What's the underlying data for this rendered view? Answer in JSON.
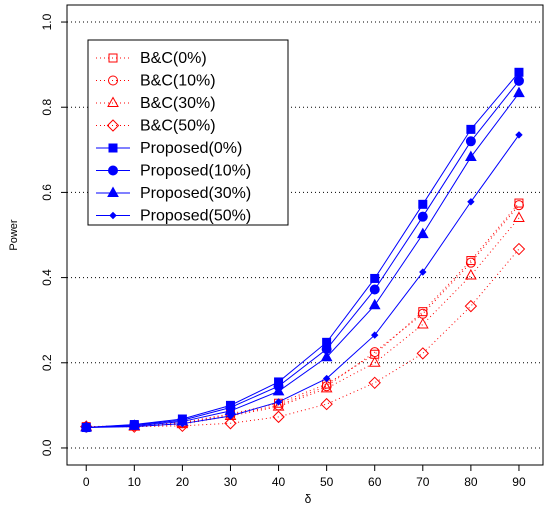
{
  "chart_data": {
    "type": "line",
    "x_label": "δ",
    "y_label": "Power",
    "x": [
      0,
      10,
      20,
      30,
      40,
      50,
      60,
      70,
      80,
      90
    ],
    "xlim": [
      -4,
      95
    ],
    "ylim": [
      -0.04,
      1.04
    ],
    "xticks": [
      0,
      10,
      20,
      30,
      40,
      50,
      60,
      70,
      80,
      90
    ],
    "yticks": [
      {
        "value": 0,
        "label": "0.0"
      },
      0.2,
      0.4,
      0.6,
      0.8,
      {
        "value": 1,
        "label": "1.0"
      }
    ],
    "grid": true,
    "legend": "upper left",
    "series": [
      {
        "name": "B&C(0%)",
        "color": "#ff0000",
        "marker": "square",
        "filled": false,
        "dash": true,
        "values": [
          0.05,
          0.052,
          0.06,
          0.08,
          0.105,
          0.15,
          0.22,
          0.32,
          0.44,
          0.575
        ]
      },
      {
        "name": "B&C(10%)",
        "color": "#ff0000",
        "marker": "circle",
        "filled": false,
        "dash": true,
        "values": [
          0.05,
          0.052,
          0.058,
          0.078,
          0.1,
          0.145,
          0.225,
          0.315,
          0.435,
          0.57
        ]
      },
      {
        "name": "B&C(30%)",
        "color": "#ff0000",
        "marker": "triangle",
        "filled": false,
        "dash": true,
        "values": [
          0.05,
          0.05,
          0.056,
          0.075,
          0.097,
          0.14,
          0.2,
          0.29,
          0.405,
          0.54
        ]
      },
      {
        "name": "B&C(50%)",
        "color": "#ff0000",
        "marker": "diamond",
        "filled": false,
        "dash": true,
        "values": [
          0.05,
          0.05,
          0.052,
          0.058,
          0.073,
          0.103,
          0.153,
          0.222,
          0.333,
          0.467
        ]
      },
      {
        "name": "Proposed(0%)",
        "color": "#0000ff",
        "marker": "square",
        "filled": true,
        "dash": false,
        "values": [
          0.048,
          0.055,
          0.068,
          0.1,
          0.155,
          0.248,
          0.398,
          0.572,
          0.748,
          0.882
        ]
      },
      {
        "name": "Proposed(10%)",
        "color": "#0000ff",
        "marker": "circle",
        "filled": true,
        "dash": false,
        "values": [
          0.048,
          0.054,
          0.065,
          0.095,
          0.145,
          0.232,
          0.372,
          0.543,
          0.72,
          0.862
        ]
      },
      {
        "name": "Proposed(30%)",
        "color": "#0000ff",
        "marker": "triangle",
        "filled": true,
        "dash": false,
        "values": [
          0.048,
          0.052,
          0.062,
          0.087,
          0.133,
          0.213,
          0.335,
          0.502,
          0.683,
          0.833
        ]
      },
      {
        "name": "Proposed(50%)",
        "color": "#0000ff",
        "marker": "smalldiamond",
        "filled": true,
        "dash": false,
        "values": [
          0.048,
          0.05,
          0.057,
          0.075,
          0.108,
          0.163,
          0.265,
          0.413,
          0.578,
          0.735
        ]
      }
    ]
  }
}
